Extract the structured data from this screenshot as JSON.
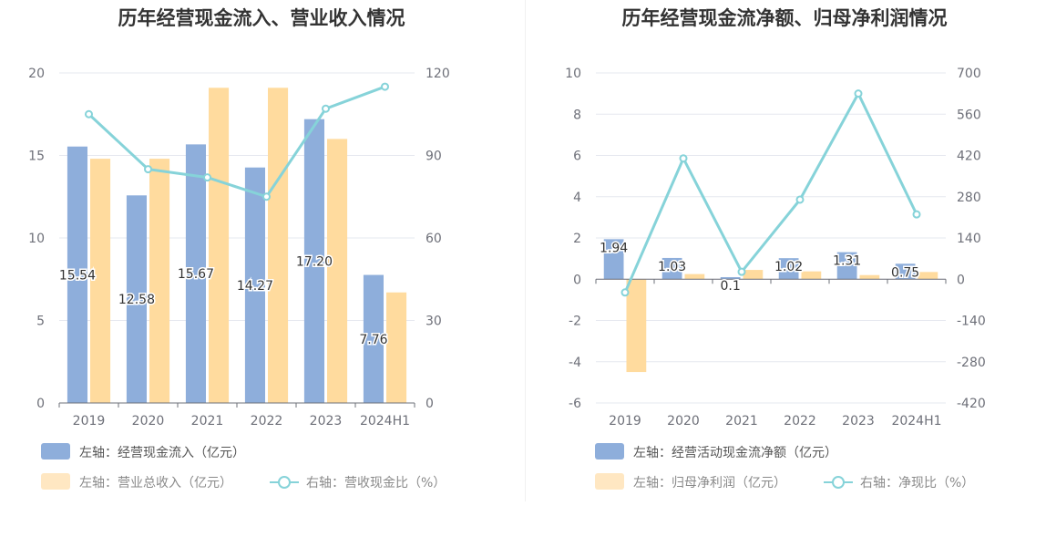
{
  "charts": [
    {
      "title": "历年经营现金流入、营业收入情况",
      "chart_data": {
        "type": "bar",
        "categories": [
          "2019",
          "2020",
          "2021",
          "2022",
          "2023",
          "2024H1"
        ],
        "series": [
          {
            "name": "左轴：经营现金流入（亿元）",
            "axis": "left",
            "kind": "bar",
            "color": "#8eaedb",
            "values": [
              15.54,
              12.58,
              15.67,
              14.27,
              17.2,
              7.76
            ],
            "labels": [
              "15.54",
              "12.58",
              "15.67",
              "14.27",
              "17.20",
              "7.76"
            ]
          },
          {
            "name": "左轴：营业总收入（亿元）",
            "axis": "left",
            "kind": "bar",
            "color": "#ffdb9e",
            "values": [
              14.8,
              14.8,
              19.1,
              19.1,
              16.0,
              6.7
            ]
          },
          {
            "name": "右轴：营收现金比（%）",
            "axis": "right",
            "kind": "line",
            "color": "#86d3d9",
            "values": [
              105,
              85,
              82,
              75,
              107,
              115
            ]
          }
        ],
        "y_left": {
          "min": 0,
          "max": 20,
          "ticks": [
            0,
            5,
            10,
            15,
            20
          ],
          "tick_labels": [
            "0",
            "5",
            "10",
            "15",
            "20"
          ]
        },
        "y_right": {
          "min": 0,
          "max": 120,
          "ticks": [
            0,
            30,
            60,
            90,
            120
          ],
          "tick_labels": [
            "0",
            "30",
            "60",
            "90",
            "120"
          ]
        },
        "grid": true,
        "legend_position": "bottom-left"
      }
    },
    {
      "title": "历年经营现金流净额、归母净利润情况",
      "chart_data": {
        "type": "bar",
        "categories": [
          "2019",
          "2020",
          "2021",
          "2022",
          "2023",
          "2024H1"
        ],
        "series": [
          {
            "name": "左轴：经营活动现金流净额（亿元）",
            "axis": "left",
            "kind": "bar",
            "color": "#8eaedb",
            "values": [
              1.94,
              1.03,
              0.1,
              1.02,
              1.31,
              0.75
            ],
            "labels": [
              "1.94",
              "1.03",
              "0.1",
              "1.02",
              "1.31",
              "0.75"
            ]
          },
          {
            "name": "左轴：归母净利润（亿元）",
            "axis": "left",
            "kind": "bar",
            "color": "#ffdb9e",
            "values": [
              -4.5,
              0.25,
              0.45,
              0.38,
              0.2,
              0.35
            ]
          },
          {
            "name": "右轴：净现比（%）",
            "axis": "right",
            "kind": "line",
            "color": "#86d3d9",
            "values": [
              -45,
              410,
              25,
              270,
              630,
              220
            ]
          }
        ],
        "y_left": {
          "min": -6,
          "max": 10,
          "ticks": [
            -6,
            -4,
            -2,
            0,
            2,
            4,
            6,
            8,
            10
          ],
          "tick_labels": [
            "-6",
            "-4",
            "-2",
            "0",
            "2",
            "4",
            "6",
            "8",
            "10"
          ]
        },
        "y_right": {
          "min": -420,
          "max": 700,
          "ticks": [
            -420,
            -280,
            -140,
            0,
            140,
            280,
            420,
            560,
            700
          ],
          "tick_labels": [
            "-420",
            "-280",
            "-140",
            "0",
            "140",
            "280",
            "420",
            "560",
            "700"
          ]
        },
        "grid": true,
        "legend_position": "bottom-left"
      }
    }
  ]
}
